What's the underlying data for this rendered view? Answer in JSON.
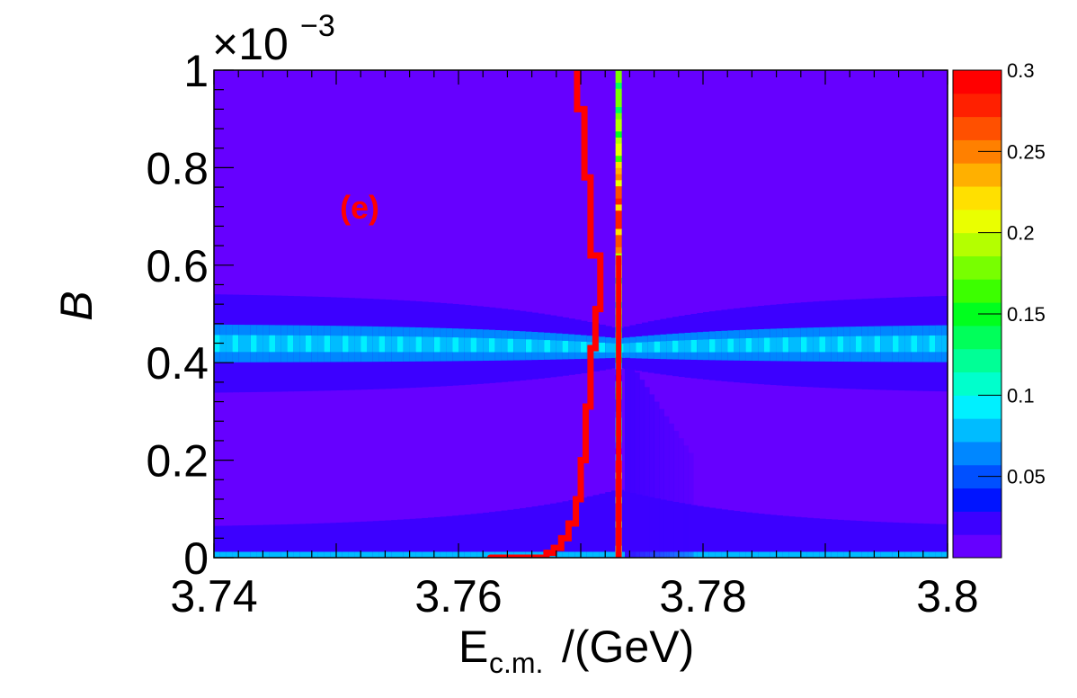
{
  "chart_data": {
    "type": "heatmap",
    "panel_label": "(e)",
    "xlabel": {
      "main": "E",
      "sub": "c.m.",
      "tail": "/(GeV)"
    },
    "ylabel": "B",
    "y_exponent": {
      "base": "×10",
      "power": "−3"
    },
    "xlim": [
      3.74,
      3.8
    ],
    "ylim": [
      0,
      0.001
    ],
    "x_ticks": [
      {
        "value": 3.74,
        "label": "3.74"
      },
      {
        "value": 3.76,
        "label": "3.76"
      },
      {
        "value": 3.78,
        "label": "3.78"
      },
      {
        "value": 3.8,
        "label": "3.8"
      }
    ],
    "y_ticks": [
      {
        "value": 0,
        "label": "0"
      },
      {
        "value": 0.0002,
        "label": "0.2"
      },
      {
        "value": 0.0004,
        "label": "0.4"
      },
      {
        "value": 0.0006,
        "label": "0.6"
      },
      {
        "value": 0.0008,
        "label": "0.8"
      },
      {
        "value": 0.001,
        "label": "1"
      }
    ],
    "z_range": [
      0,
      0.3
    ],
    "z_ticks": [
      {
        "value": 0.05,
        "label": "0.05"
      },
      {
        "value": 0.1,
        "label": "0.1"
      },
      {
        "value": 0.15,
        "label": "0.15"
      },
      {
        "value": 0.2,
        "label": "0.2"
      },
      {
        "value": 0.25,
        "label": "0.25"
      },
      {
        "value": 0.3,
        "label": "0.3"
      }
    ],
    "palette": [
      "#6600ff",
      "#3c00ff",
      "#0014ff",
      "#0050ff",
      "#0087ff",
      "#00bcff",
      "#00f0ff",
      "#00ffcc",
      "#00ff96",
      "#00ff5a",
      "#00ff1e",
      "#3cff00",
      "#78ff00",
      "#b4ff00",
      "#eaff00",
      "#ffe000",
      "#ffb000",
      "#ff8000",
      "#ff5000",
      "#ff2000",
      "#ff0000"
    ],
    "band": {
      "center_y": 0.00044,
      "near_resonance_center_y": 0.00043,
      "outer_halfwidth_far": 0.000105,
      "outer_halfwidth_near": 4e-05,
      "inner_halfwidth_far": 4e-05,
      "inner_halfwidth_near": 2e-05
    },
    "narrow_resonance_x": 3.7731,
    "red_curve_color": "#ff0000",
    "red_curve_points": [
      [
        3.7626,
        0.0
      ],
      [
        3.7662,
        0.0
      ],
      [
        3.7672,
        1e-05
      ],
      [
        3.7678,
        2e-05
      ],
      [
        3.7684,
        4e-05
      ],
      [
        3.769,
        7e-05
      ],
      [
        3.7696,
        0.00012
      ],
      [
        3.77,
        0.0002
      ],
      [
        3.7704,
        0.00031
      ],
      [
        3.7708,
        0.00043
      ],
      [
        3.7712,
        0.00051
      ],
      [
        3.7716,
        0.00062
      ],
      [
        3.7708,
        0.00078
      ],
      [
        3.7703,
        0.00092
      ],
      [
        3.7697,
        0.001
      ]
    ]
  }
}
